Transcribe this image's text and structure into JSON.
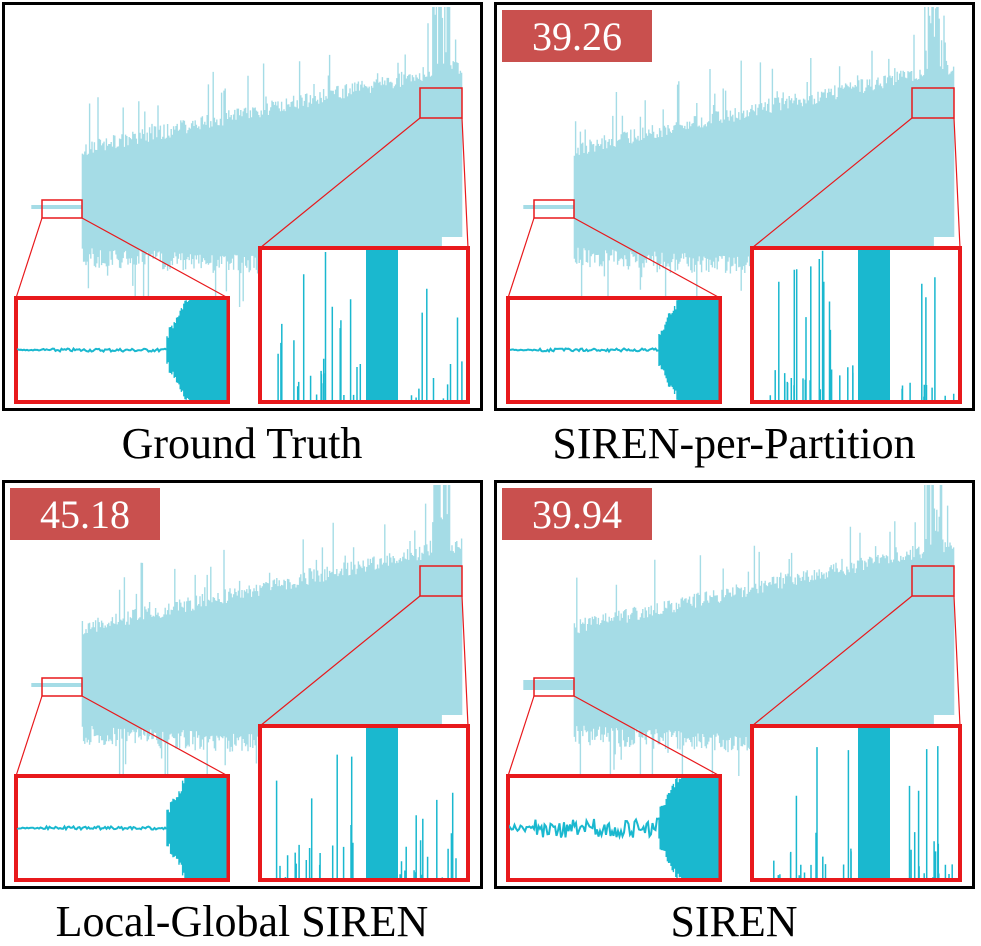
{
  "panels": [
    {
      "caption": "Ground Truth"
    },
    {
      "caption": "SIREN-per-Partition",
      "score": 39.26
    },
    {
      "caption": "Local-Global SIREN",
      "score": 45.18
    },
    {
      "caption": "SIREN",
      "score": 39.94
    }
  ]
}
